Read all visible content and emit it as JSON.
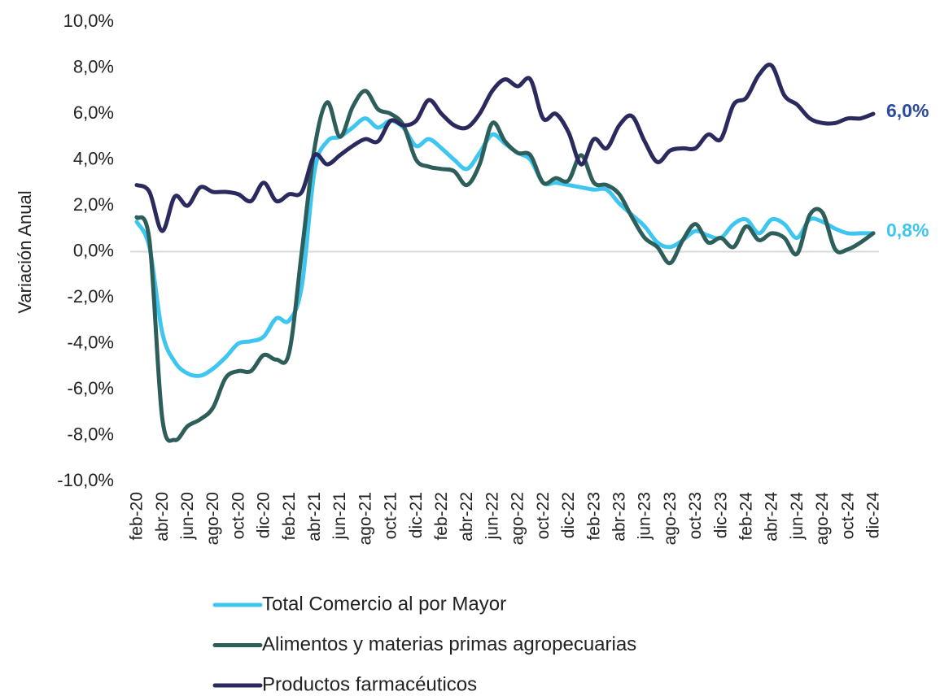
{
  "chart_data": {
    "type": "line",
    "y_axis_label": "Variación Anual",
    "categories": [
      "feb-20",
      null,
      "abr-20",
      null,
      "jun-20",
      null,
      "ago-20",
      null,
      "oct-20",
      null,
      "dic-20",
      null,
      "feb-21",
      null,
      "abr-21",
      null,
      "jun-21",
      null,
      "ago-21",
      null,
      "oct-21",
      null,
      "dic-21",
      null,
      "feb-22",
      null,
      "abr-22",
      null,
      "jun-22",
      null,
      "ago-22",
      null,
      "oct-22",
      null,
      "dic-22",
      null,
      "feb-23",
      null,
      "abr-23",
      null,
      "jun-23",
      null,
      "ago-23",
      null,
      "oct-23",
      null,
      "dic-23",
      null,
      "feb-24",
      null,
      "abr-24",
      null,
      "jun-24",
      null,
      "ago-24",
      null,
      "oct-24",
      null,
      "dic-24"
    ],
    "series": [
      {
        "name": "Total Comercio al por Mayor",
        "color": "#3ec6f0",
        "label_color": "#3ec6f0",
        "values": [
          1.3,
          0.2,
          -3.5,
          -4.8,
          -5.3,
          -5.4,
          -5.1,
          -4.6,
          -4.0,
          -3.9,
          -3.7,
          -2.9,
          -3.0,
          -1.5,
          3.5,
          4.8,
          5.0,
          5.4,
          5.8,
          5.4,
          5.7,
          5.4,
          4.6,
          4.9,
          4.5,
          4.0,
          3.6,
          4.3,
          5.1,
          4.7,
          4.3,
          4.0,
          3.0,
          3.0,
          2.9,
          2.8,
          2.7,
          2.7,
          2.1,
          1.6,
          1.1,
          0.4,
          0.2,
          0.5,
          0.9,
          0.7,
          0.6,
          1.2,
          1.4,
          0.8,
          1.4,
          1.2,
          0.6,
          1.4,
          1.3,
          1.0,
          0.8,
          0.8,
          0.8
        ],
        "value_labels": [
          null,
          null,
          null,
          null,
          null,
          null,
          null,
          null,
          null,
          null,
          null,
          null,
          null,
          null,
          null,
          null,
          null,
          null,
          null,
          null,
          null,
          null,
          null,
          null,
          null,
          null,
          null,
          null,
          null,
          null,
          null,
          null,
          null,
          null,
          null,
          null,
          null,
          null,
          null,
          null,
          null,
          null,
          null,
          null,
          null,
          null,
          null,
          null,
          null,
          null,
          null,
          null,
          null,
          null,
          null,
          null,
          null,
          null,
          "0,8%"
        ]
      },
      {
        "name": "Alimentos y materias primas agropecuarias",
        "color": "#2e5e5a",
        "values": [
          1.5,
          0.5,
          -7.2,
          -8.2,
          -7.6,
          -7.3,
          -6.8,
          -5.5,
          -5.2,
          -5.2,
          -4.5,
          -4.7,
          -4.4,
          0.0,
          4.5,
          6.5,
          5.0,
          6.3,
          7.0,
          6.2,
          6.0,
          5.5,
          4.0,
          3.7,
          3.6,
          3.5,
          2.9,
          3.8,
          5.6,
          4.8,
          4.3,
          4.2,
          3.0,
          3.2,
          3.1,
          4.2,
          3.0,
          2.9,
          2.5,
          1.5,
          0.6,
          0.2,
          -0.5,
          0.5,
          1.2,
          0.4,
          0.6,
          0.2,
          1.1,
          0.5,
          0.8,
          0.6,
          -0.1,
          1.6,
          1.7,
          0.1,
          0.1,
          0.4,
          0.8
        ]
      },
      {
        "name": "Productos farmacéuticos",
        "color": "#2b2a5e",
        "label_color": "#2c4a9b",
        "values": [
          2.9,
          2.6,
          0.9,
          2.4,
          2.0,
          2.8,
          2.6,
          2.6,
          2.5,
          2.2,
          3.0,
          2.2,
          2.5,
          2.6,
          4.2,
          3.8,
          4.2,
          4.6,
          4.9,
          4.8,
          5.7,
          5.5,
          5.7,
          6.6,
          6.0,
          5.5,
          5.4,
          6.0,
          7.0,
          7.5,
          7.2,
          7.5,
          5.8,
          6.0,
          5.2,
          3.8,
          4.9,
          4.5,
          5.5,
          5.9,
          4.8,
          3.9,
          4.4,
          4.5,
          4.5,
          5.1,
          4.9,
          6.4,
          6.7,
          7.7,
          8.1,
          6.8,
          6.4,
          5.8,
          5.6,
          5.6,
          5.8,
          5.8,
          6.0
        ],
        "value_labels": [
          null,
          null,
          null,
          null,
          null,
          null,
          null,
          null,
          null,
          null,
          null,
          null,
          null,
          null,
          null,
          null,
          null,
          null,
          null,
          null,
          null,
          null,
          null,
          null,
          null,
          null,
          null,
          null,
          null,
          null,
          null,
          null,
          null,
          null,
          null,
          null,
          null,
          null,
          null,
          null,
          null,
          null,
          null,
          null,
          null,
          null,
          null,
          null,
          null,
          null,
          null,
          null,
          null,
          null,
          null,
          null,
          null,
          null,
          "6,0%"
        ]
      }
    ],
    "ylim": [
      -10,
      10
    ],
    "yticks": [
      {
        "value": -10,
        "label": "-10,0%"
      },
      {
        "value": -8,
        "label": "-8,0%"
      },
      {
        "value": -6,
        "label": "-6,0%"
      },
      {
        "value": -4,
        "label": "-4,0%"
      },
      {
        "value": -2,
        "label": "-2,0%"
      },
      {
        "value": 0,
        "label": "0,0%"
      },
      {
        "value": 2,
        "label": "2,0%"
      },
      {
        "value": 4,
        "label": "4,0%"
      },
      {
        "value": 6,
        "label": "6,0%"
      },
      {
        "value": 8,
        "label": "8,0%"
      },
      {
        "value": 10,
        "label": "10,0%"
      }
    ],
    "zero_line": true,
    "legend": "bottom"
  }
}
